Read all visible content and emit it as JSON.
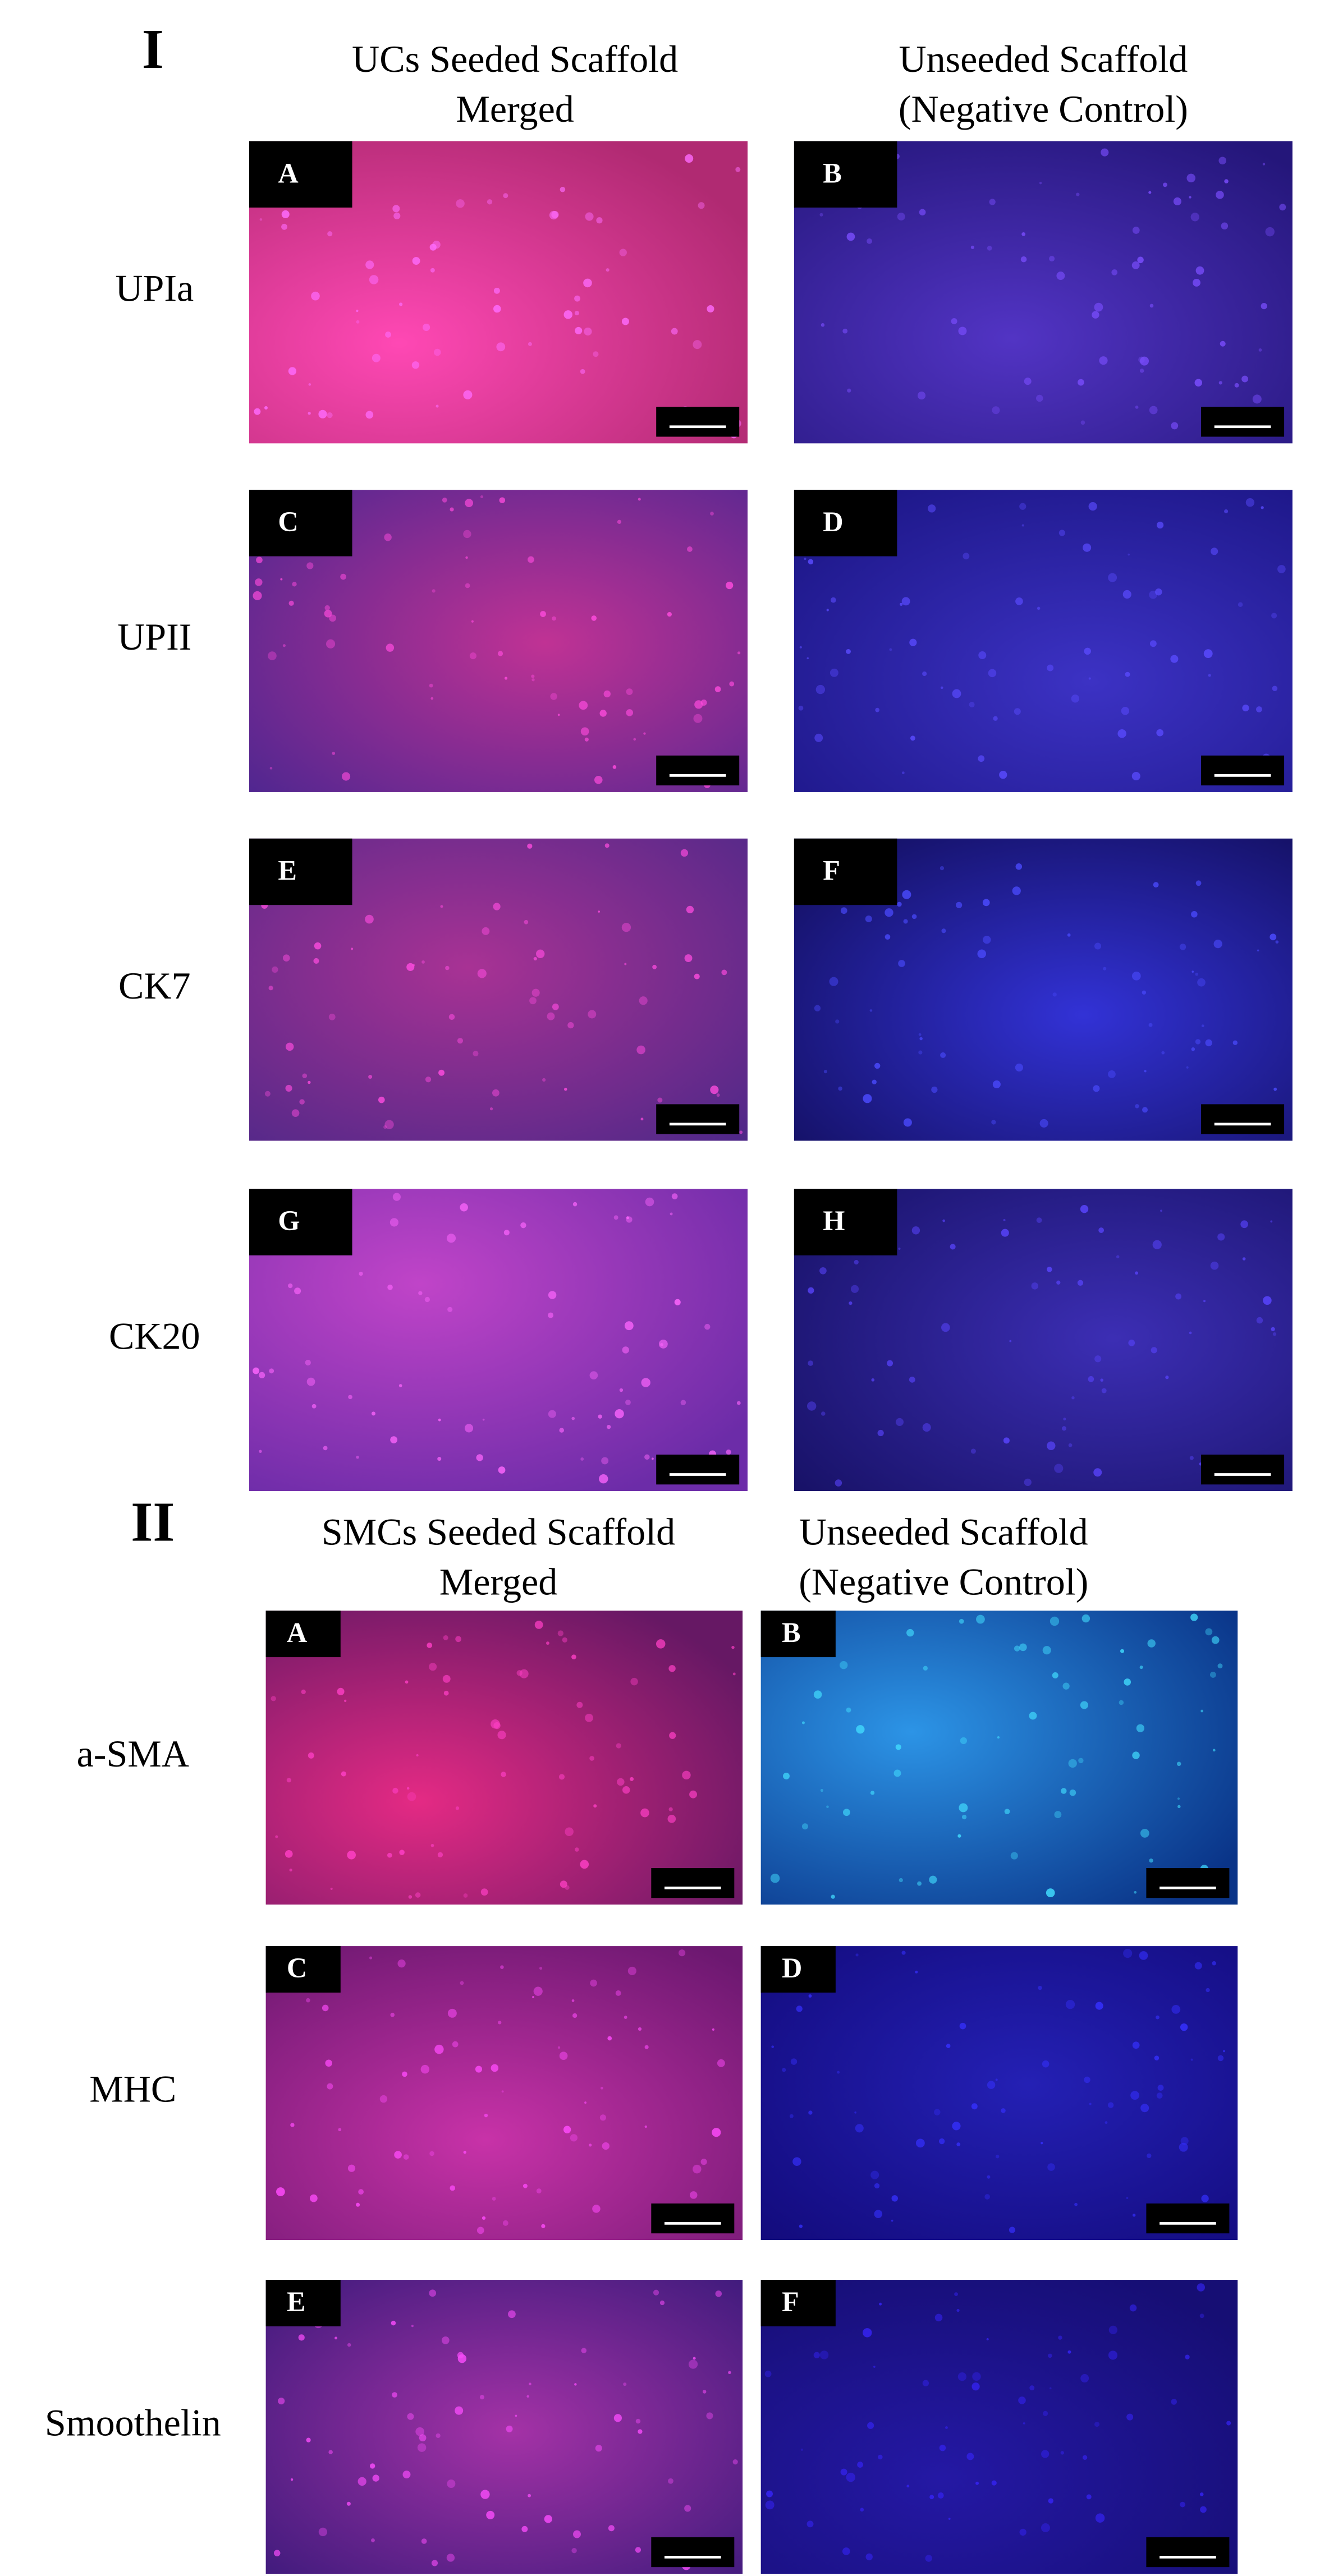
{
  "sections": [
    {
      "title": "I",
      "columns": [
        {
          "lines": [
            "UCs Seeded Scaffold",
            "Merged"
          ]
        },
        {
          "lines": [
            "Unseeded Scaffold",
            "(Negative Control)"
          ]
        }
      ],
      "rows": [
        {
          "label": "UPIa",
          "panels": [
            "A",
            "B"
          ]
        },
        {
          "label": "UPII",
          "panels": [
            "C",
            "D"
          ]
        },
        {
          "label": "CK7",
          "panels": [
            "E",
            "F"
          ]
        },
        {
          "label": "CK20",
          "panels": [
            "G",
            "H"
          ]
        }
      ]
    },
    {
      "title": "II",
      "columns": [
        {
          "lines": [
            "SMCs Seeded Scaffold",
            "Merged"
          ]
        },
        {
          "lines": [
            "Unseeded Scaffold",
            "(Negative Control)"
          ]
        }
      ],
      "rows": [
        {
          "label": "a-SMA",
          "panels": [
            "A",
            "B"
          ]
        },
        {
          "label": "MHC",
          "panels": [
            "C",
            "D"
          ]
        },
        {
          "label": "Smoothelin",
          "panels": [
            "E",
            "F"
          ]
        }
      ]
    }
  ]
}
